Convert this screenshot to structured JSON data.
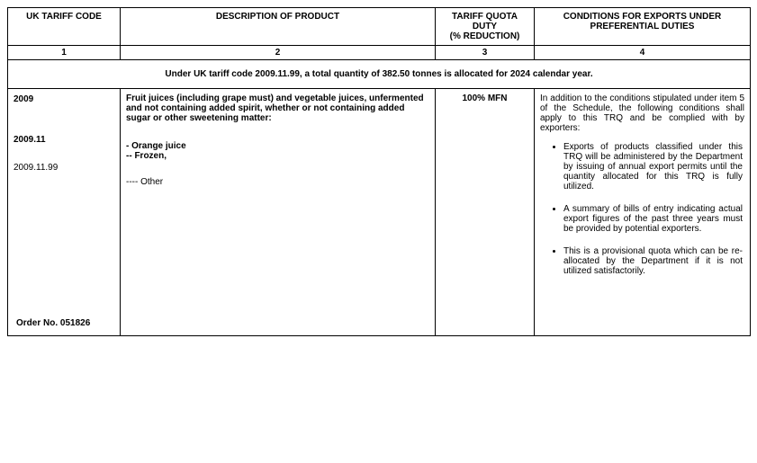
{
  "headers": {
    "col1": "UK TARIFF CODE",
    "col2": "DESCRIPTION OF PRODUCT",
    "col3": "TARIFF QUOTA DUTY",
    "col3_sub": "(% REDUCTION)",
    "col4": "CONDITIONS FOR EXPORTS UNDER PREFERENTIAL DUTIES"
  },
  "col_numbers": {
    "c1": "1",
    "c2": "2",
    "c3": "3",
    "c4": "4"
  },
  "allocation": "Under UK tariff code 2009.11.99, a total quantity of 382.50 tonnes is allocated for 2024 calendar year.",
  "codes": {
    "c1": "2009",
    "c2": "2009.11",
    "c3": "2009.11.99"
  },
  "description": {
    "main": "Fruit juices (including grape must) and vegetable juices, unfermented and not containing added spirit, whether or not containing added sugar or other sweetening matter:",
    "sub1": "- Orange juice",
    "sub2": "-- Frozen,",
    "other": "---- Other"
  },
  "duty": "100% MFN",
  "conditions": {
    "intro": "In addition to the conditions stipulated under item 5 of the Schedule, the following conditions shall apply to this TRQ and be complied with by exporters:",
    "bullets": [
      "Exports of products classified under this TRQ will be administered by the Department by issuing of annual export permits until the quantity allocated for this TRQ is fully utilized.",
      "A summary of bills of entry indicating actual export figures of the past three years must be provided by potential exporters.",
      "This is a provisional quota which can be re-allocated by the Department if it is not utilized satisfactorily."
    ]
  },
  "order_no": "Order No. 051826"
}
